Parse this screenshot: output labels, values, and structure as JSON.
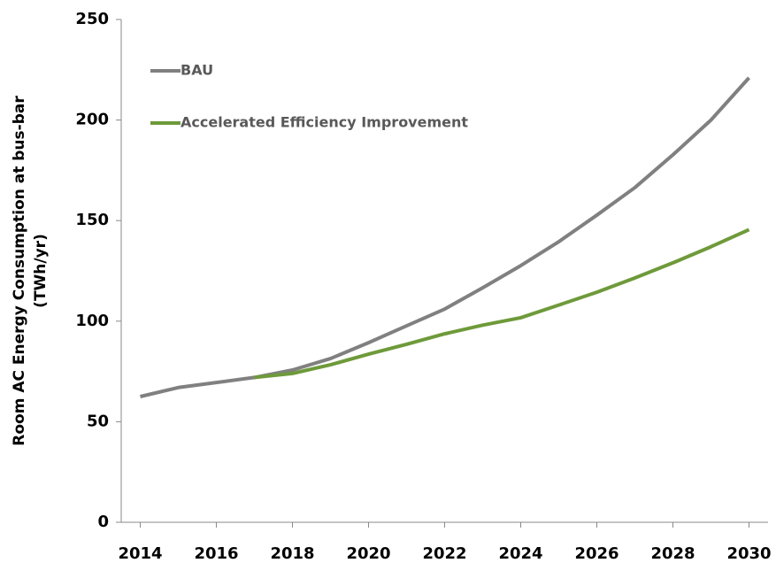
{
  "chart_data": {
    "type": "line",
    "ylabel": [
      "Room AC Energy Consumption at bus-bar",
      "(TWh/yr)"
    ],
    "x": [
      2014,
      2015,
      2016,
      2017,
      2018,
      2019,
      2020,
      2021,
      2022,
      2023,
      2024,
      2025,
      2026,
      2027,
      2028,
      2029,
      2030
    ],
    "series": [
      {
        "name": "BAU",
        "color": "#808080",
        "values": [
          62.5,
          67,
          69.5,
          72,
          75.7,
          81.4,
          89.3,
          97.7,
          106,
          116.6,
          127.6,
          139.5,
          152.7,
          166.4,
          182.7,
          200,
          221
        ]
      },
      {
        "name": "Accelerated Efficiency Improvement",
        "color": "#6e9a3a",
        "values": [
          null,
          null,
          null,
          72,
          74,
          78.3,
          83.6,
          88.5,
          93.7,
          98,
          101.7,
          108,
          114.4,
          121.5,
          129,
          137,
          145.5
        ]
      }
    ],
    "xlim": [
      2013.5,
      2030.5
    ],
    "xticks": [
      2014,
      2016,
      2018,
      2020,
      2022,
      2024,
      2026,
      2028,
      2030
    ],
    "ylim": [
      0,
      250
    ],
    "yticks": [
      0,
      50,
      100,
      150,
      200,
      250
    ],
    "grid": false,
    "legend": "upper left"
  }
}
